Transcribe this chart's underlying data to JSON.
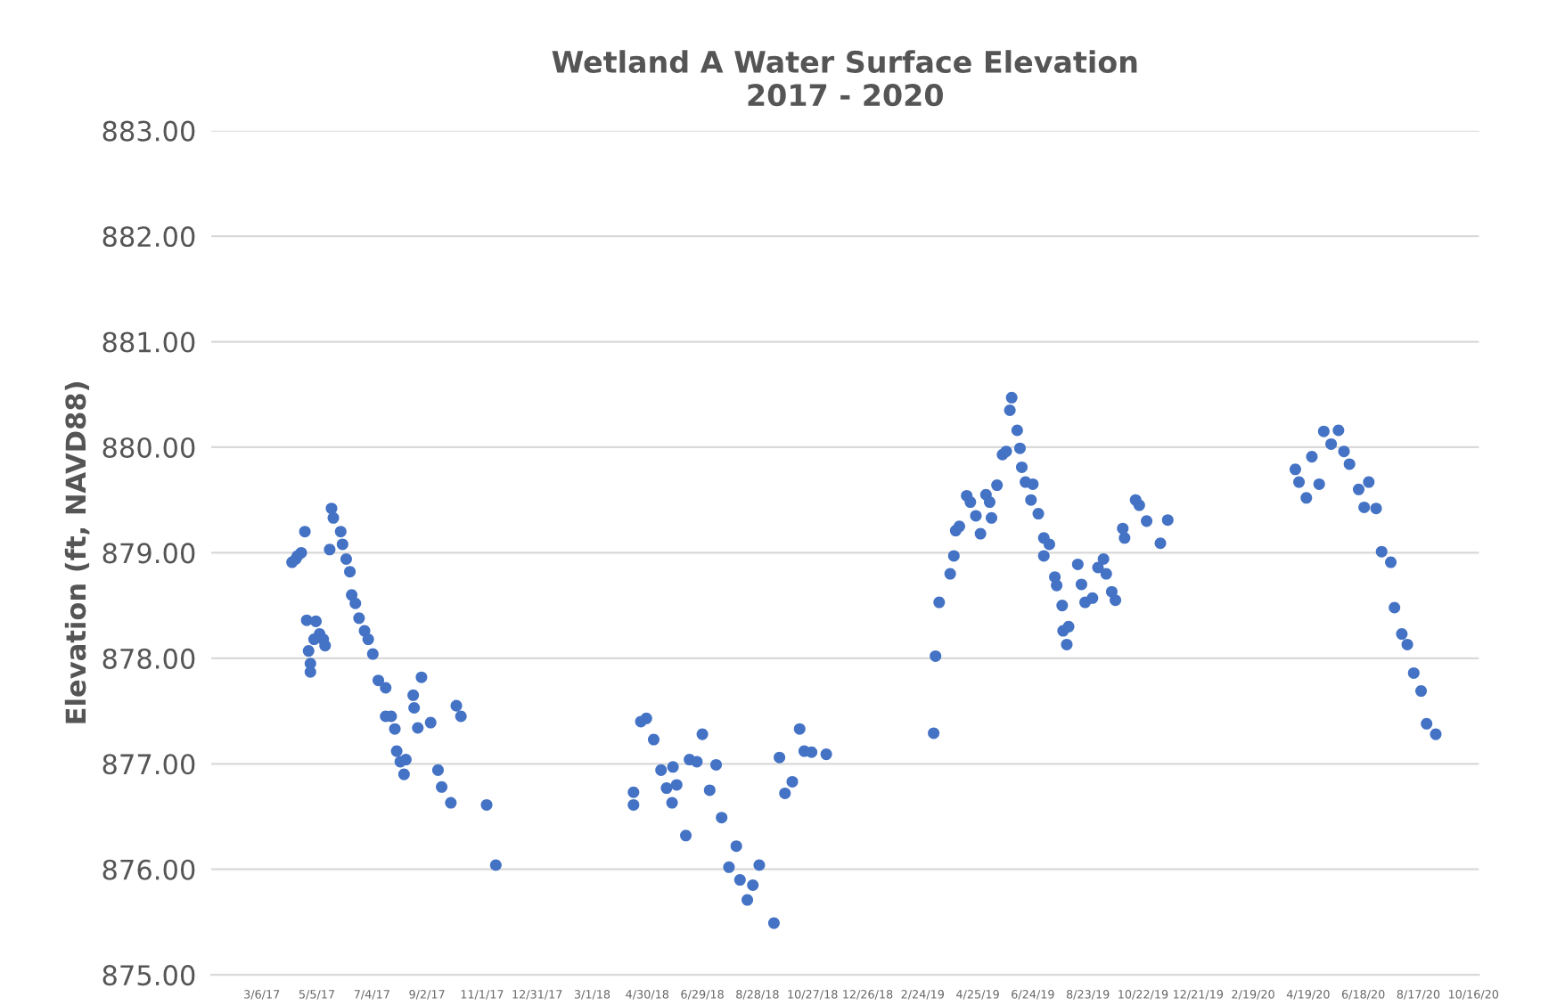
{
  "chart_data": {
    "type": "scatter",
    "title": "Wetland A Water Surface Elevation\n2017 - 2020",
    "ylabel": "Elevation (ft, NAVD88)",
    "xlim": [
      "2017-01-10",
      "2020-10-22"
    ],
    "ylim": [
      875,
      883
    ],
    "xticks": [
      {
        "value": "2017-03-06",
        "label": "3/6/17"
      },
      {
        "value": "2017-05-05",
        "label": "5/5/17"
      },
      {
        "value": "2017-07-04",
        "label": "7/4/17"
      },
      {
        "value": "2017-09-02",
        "label": "9/2/17"
      },
      {
        "value": "2017-11-01",
        "label": "11/1/17"
      },
      {
        "value": "2017-12-31",
        "label": "12/31/17"
      },
      {
        "value": "2018-03-01",
        "label": "3/1/18"
      },
      {
        "value": "2018-04-30",
        "label": "4/30/18"
      },
      {
        "value": "2018-06-29",
        "label": "6/29/18"
      },
      {
        "value": "2018-08-28",
        "label": "8/28/18"
      },
      {
        "value": "2018-10-27",
        "label": "10/27/18"
      },
      {
        "value": "2018-12-26",
        "label": "12/26/18"
      },
      {
        "value": "2019-02-24",
        "label": "2/24/19"
      },
      {
        "value": "2019-04-25",
        "label": "4/25/19"
      },
      {
        "value": "2019-06-24",
        "label": "6/24/19"
      },
      {
        "value": "2019-08-23",
        "label": "8/23/19"
      },
      {
        "value": "2019-10-22",
        "label": "10/22/19"
      },
      {
        "value": "2019-12-21",
        "label": "12/21/19"
      },
      {
        "value": "2020-02-19",
        "label": "2/19/20"
      },
      {
        "value": "2020-04-19",
        "label": "4/19/20"
      },
      {
        "value": "2020-06-18",
        "label": "6/18/20"
      },
      {
        "value": "2020-08-17",
        "label": "8/17/20"
      },
      {
        "value": "2020-10-16",
        "label": "10/16/20"
      }
    ],
    "yticks": [
      {
        "value": 875,
        "label": "875.00"
      },
      {
        "value": 876,
        "label": "876.00"
      },
      {
        "value": 877,
        "label": "877.00"
      },
      {
        "value": 878,
        "label": "878.00"
      },
      {
        "value": 879,
        "label": "879.00"
      },
      {
        "value": 880,
        "label": "880.00"
      },
      {
        "value": 881,
        "label": "881.00"
      },
      {
        "value": 882,
        "label": "882.00"
      },
      {
        "value": 883,
        "label": "883.00"
      }
    ],
    "grid": "y",
    "marker": "circle",
    "series": [
      {
        "color": "#4472c4",
        "x": [
          "2017-04-08",
          "2017-04-12",
          "2017-04-14",
          "2017-04-18",
          "2017-04-22",
          "2017-04-24",
          "2017-05-04",
          "2017-04-26",
          "2017-04-28",
          "2017-04-28",
          "2017-05-08",
          "2017-05-12",
          "2017-05-14",
          "2017-05-02",
          "2017-05-19",
          "2017-05-21",
          "2017-05-23",
          "2017-05-31",
          "2017-06-02",
          "2017-06-06",
          "2017-06-10",
          "2017-06-12",
          "2017-06-16",
          "2017-06-20",
          "2017-06-26",
          "2017-06-30",
          "2017-07-05",
          "2017-07-11",
          "2017-07-19",
          "2017-07-19",
          "2017-07-25",
          "2017-07-29",
          "2017-07-31",
          "2017-08-04",
          "2017-08-10",
          "2017-08-08",
          "2017-08-18",
          "2017-08-27",
          "2017-08-19",
          "2017-08-23",
          "2017-09-06",
          "2017-09-14",
          "2017-09-18",
          "2017-09-28",
          "2017-10-04",
          "2017-10-09",
          "2017-11-06",
          "2017-11-16",
          "2018-04-23",
          "2018-04-29",
          "2018-05-07",
          "2018-04-15",
          "2018-04-15",
          "2018-05-15",
          "2018-05-28",
          "2018-05-21",
          "2018-06-01",
          "2018-05-27",
          "2018-06-11",
          "2018-06-15",
          "2018-06-23",
          "2018-06-29",
          "2018-07-14",
          "2018-07-07",
          "2018-07-20",
          "2018-08-05",
          "2018-07-28",
          "2018-08-09",
          "2018-08-23",
          "2018-08-30",
          "2018-08-17",
          "2018-09-15",
          "2018-09-21",
          "2018-10-13",
          "2018-10-05",
          "2018-09-27",
          "2018-10-18",
          "2018-10-26",
          "2018-11-11",
          "2019-03-08",
          "2019-03-10",
          "2019-03-14",
          "2019-03-26",
          "2019-03-30",
          "2019-04-01",
          "2019-04-05",
          "2019-04-13",
          "2019-04-17",
          "2019-04-23",
          "2019-04-28",
          "2019-05-04",
          "2019-05-08",
          "2019-05-10",
          "2019-05-16",
          "2019-05-22",
          "2019-05-26",
          "2019-05-30",
          "2019-06-01",
          "2019-06-07",
          "2019-06-10",
          "2019-06-12",
          "2019-06-16",
          "2019-06-24",
          "2019-06-22",
          "2019-06-30",
          "2019-07-06",
          "2019-07-12",
          "2019-07-06",
          "2019-07-18",
          "2019-07-20",
          "2019-07-26",
          "2019-07-27",
          "2019-08-02",
          "2019-07-31",
          "2019-08-12",
          "2019-08-16",
          "2019-08-20",
          "2019-08-28",
          "2019-09-03",
          "2019-09-09",
          "2019-09-12",
          "2019-09-18",
          "2019-09-22",
          "2019-09-30",
          "2019-10-02",
          "2019-10-14",
          "2019-10-18",
          "2019-10-26",
          "2019-11-10",
          "2019-11-18",
          "2020-04-05",
          "2020-04-09",
          "2020-04-17",
          "2020-04-23",
          "2020-05-01",
          "2020-05-06",
          "2020-05-22",
          "2020-05-14",
          "2020-05-28",
          "2020-06-03",
          "2020-06-13",
          "2020-06-24",
          "2020-06-19",
          "2020-07-02",
          "2020-07-08",
          "2020-07-18",
          "2020-07-22",
          "2020-07-30",
          "2020-08-05",
          "2020-08-12",
          "2020-08-20",
          "2020-08-26",
          "2020-09-05"
        ],
        "values": [
          878.91,
          878.94,
          878.97,
          879.0,
          879.2,
          878.36,
          878.35,
          878.07,
          877.95,
          877.87,
          878.23,
          878.18,
          878.12,
          878.18,
          879.03,
          879.42,
          879.33,
          879.2,
          879.08,
          878.94,
          878.82,
          878.6,
          878.52,
          878.38,
          878.26,
          878.18,
          878.04,
          877.79,
          877.72,
          877.45,
          877.45,
          877.33,
          877.12,
          877.02,
          877.04,
          876.9,
          877.65,
          877.82,
          877.53,
          877.34,
          877.39,
          876.94,
          876.78,
          876.63,
          877.55,
          877.45,
          876.61,
          876.04,
          877.4,
          877.43,
          877.23,
          876.73,
          876.61,
          876.94,
          876.97,
          876.77,
          876.8,
          876.63,
          876.32,
          877.04,
          877.02,
          877.28,
          876.99,
          876.75,
          876.49,
          876.22,
          876.02,
          875.9,
          875.85,
          876.04,
          875.71,
          875.49,
          877.06,
          877.33,
          876.83,
          876.72,
          877.12,
          877.11,
          877.09,
          877.29,
          878.02,
          878.53,
          878.8,
          878.97,
          879.21,
          879.25,
          879.54,
          879.48,
          879.35,
          879.18,
          879.55,
          879.48,
          879.33,
          879.64,
          879.93,
          879.96,
          880.35,
          880.47,
          880.16,
          879.99,
          879.81,
          879.67,
          879.65,
          879.5,
          879.37,
          879.14,
          879.08,
          878.97,
          878.77,
          878.69,
          878.5,
          878.26,
          878.3,
          878.13,
          878.89,
          878.7,
          878.53,
          878.57,
          878.86,
          878.94,
          878.8,
          878.63,
          878.55,
          879.23,
          879.14,
          879.5,
          879.45,
          879.3,
          879.09,
          879.31,
          879.79,
          879.67,
          879.52,
          879.91,
          879.65,
          880.15,
          880.16,
          880.03,
          879.96,
          879.84,
          879.6,
          879.67,
          879.43,
          879.42,
          879.01,
          878.91,
          878.48,
          878.23,
          878.13,
          877.86,
          877.69,
          877.38,
          877.28
        ]
      }
    ]
  }
}
